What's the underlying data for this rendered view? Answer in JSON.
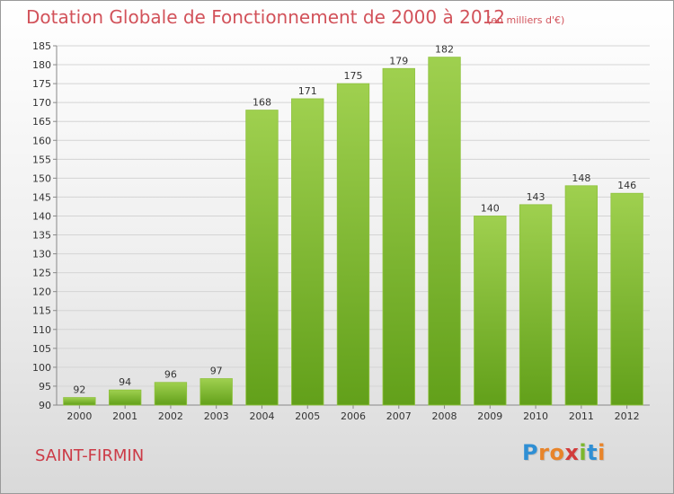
{
  "chart_data": {
    "type": "bar",
    "title": "Dotation Globale de Fonctionnement de 2000 à 2012",
    "subtitle": "(en milliers d'€)",
    "categories": [
      "2000",
      "2001",
      "2002",
      "2003",
      "2004",
      "2005",
      "2006",
      "2007",
      "2008",
      "2009",
      "2010",
      "2011",
      "2012"
    ],
    "values": [
      92,
      94,
      96,
      97,
      168,
      171,
      175,
      179,
      182,
      140,
      143,
      148,
      146
    ],
    "ylim": [
      90,
      185
    ],
    "yticks": [
      90,
      95,
      100,
      105,
      110,
      115,
      120,
      125,
      130,
      135,
      140,
      145,
      150,
      155,
      160,
      165,
      170,
      175,
      180,
      185
    ],
    "grid": true,
    "legend": "none",
    "colors": {
      "bar_light": "#9fd04f",
      "bar_dark": "#62a01a",
      "title": "#d2525a"
    }
  },
  "commune": "SAINT-FIRMIN",
  "logo": {
    "letters": [
      "P",
      "r",
      "o",
      "x",
      "i",
      "t",
      "i"
    ],
    "colors": [
      "#2f8fd4",
      "#e8842a",
      "#e8842a",
      "#d23c3c",
      "#7cb72e",
      "#2f8fd4",
      "#e8842a"
    ]
  }
}
